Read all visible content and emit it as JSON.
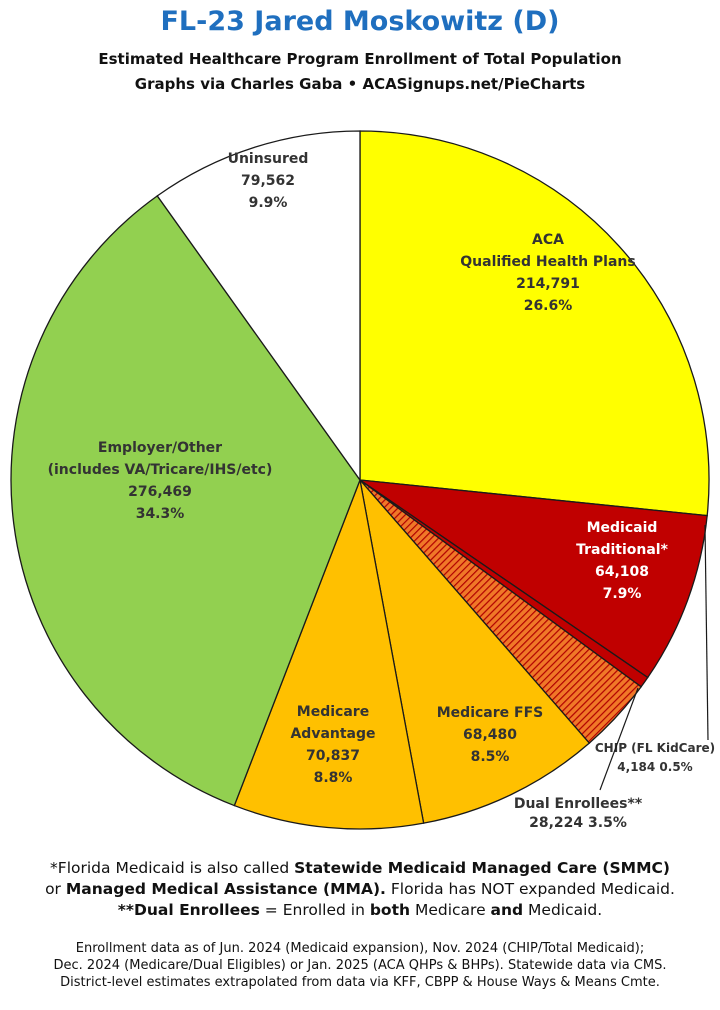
{
  "header": {
    "title": "FL-23 Jared Moskowitz (D)",
    "subtitle1": "Estimated Healthcare Program Enrollment of Total Population",
    "subtitle2": "Graphs via Charles Gaba   •   ACASignups.net/PieCharts"
  },
  "chart_data": {
    "type": "pie",
    "start": "12 o'clock",
    "direction": "clockwise",
    "slices": [
      {
        "lines": [
          "ACA",
          "Qualified Health Plans"
        ],
        "value": 214791,
        "value_label": "214,791",
        "percent": "26.6%",
        "color": "#ffff00",
        "text_color": "#333333"
      },
      {
        "lines": [
          "Medicaid",
          "Traditional*"
        ],
        "value": 64108,
        "value_label": "64,108",
        "percent": "7.9%",
        "color": "#c00000",
        "text_color": "#ffffff"
      },
      {
        "lines": [
          "CHIP (FL KidCare)"
        ],
        "value": 4184,
        "value_label": "4,184",
        "percent": "0.5%",
        "color": "#c00000",
        "text_color": "#333333",
        "callout": true
      },
      {
        "lines": [
          "Dual Enrollees**"
        ],
        "value": 28224,
        "value_label": "28,224",
        "percent": "3.5%",
        "color": "#e07020",
        "text_color": "#333333",
        "callout": true,
        "hatched": true
      },
      {
        "lines": [
          "Medicare FFS"
        ],
        "value": 68480,
        "value_label": "68,480",
        "percent": "8.5%",
        "color": "#ffc000",
        "text_color": "#333333"
      },
      {
        "lines": [
          "Medicare",
          "Advantage"
        ],
        "value": 70837,
        "value_label": "70,837",
        "percent": "8.8%",
        "color": "#ffc000",
        "text_color": "#333333"
      },
      {
        "lines": [
          "Employer/Other",
          "(includes VA/Tricare/IHS/etc)"
        ],
        "value": 276469,
        "value_label": "276,469",
        "percent": "34.3%",
        "color": "#92d050",
        "text_color": "#333333"
      },
      {
        "lines": [
          "Uninsured"
        ],
        "value": 79562,
        "value_label": "79,562",
        "percent": "9.9%",
        "color": "#ffffff",
        "text_color": "#333333"
      }
    ]
  },
  "footnotes": {
    "n1_a": "*Florida Medicaid is also called ",
    "n1_b": "Statewide Medicaid Managed Care (SMMC)",
    "n1_c": "or ",
    "n1_d": "Managed Medical Assistance (MMA).",
    "n1_e": " Florida has NOT expanded Medicaid.",
    "n2_a": "**Dual Enrollees",
    "n2_b": " = Enrolled in ",
    "n2_c": "both",
    "n2_d": " Medicare ",
    "n2_e": "and",
    "n2_f": " Medicaid.",
    "src1": "Enrollment data as of Jun. 2024 (Medicaid expansion), Nov. 2024 (CHIP/Total Medicaid);",
    "src2": "Dec. 2024 (Medicare/Dual Eligibles) or Jan. 2025 (ACA QHPs & BHPs). Statewide data via CMS.",
    "src3": "District-level estimates extrapolated from data via KFF, CBPP & House Ways & Means Cmte."
  }
}
